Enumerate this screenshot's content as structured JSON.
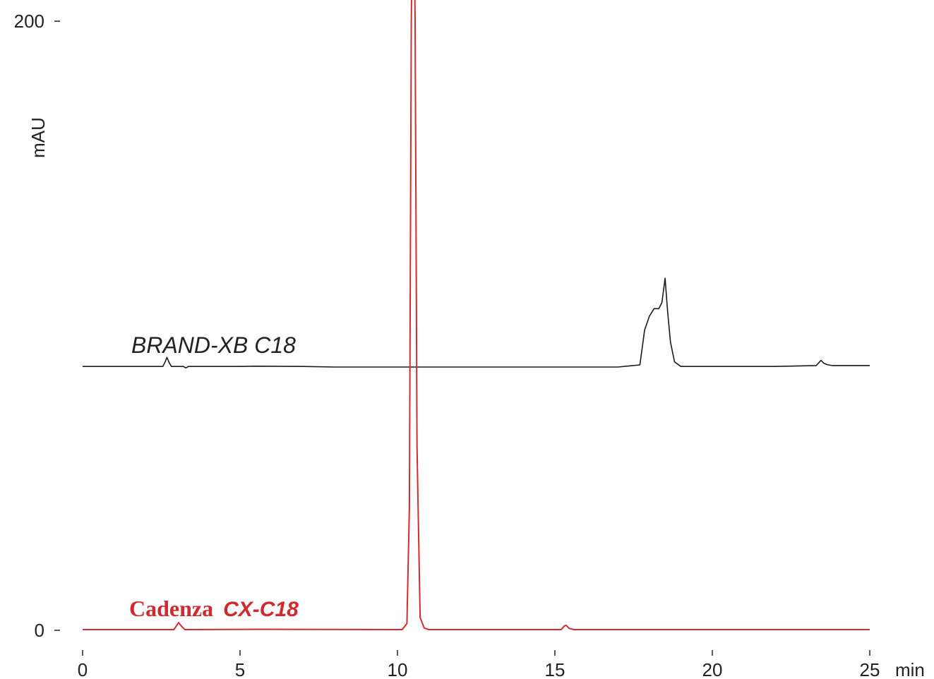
{
  "chart_data": {
    "type": "line",
    "title": "",
    "xlabel": "min",
    "ylabel": "mAU",
    "xlim": [
      0,
      25
    ],
    "ylim": [
      0,
      200
    ],
    "x_ticks": [
      0,
      5,
      10,
      15,
      20,
      25
    ],
    "y_ticks": [
      0,
      200
    ],
    "grid": false,
    "series": [
      {
        "name": "BRAND-XB C18",
        "color": "#1a1a1a",
        "baseline_offset": 86.5,
        "x": [
          0,
          2.55,
          2.62,
          2.68,
          2.75,
          2.82,
          3.2,
          3.28,
          3.36,
          5,
          5.5,
          7,
          8,
          10,
          12,
          15,
          17,
          17.7,
          17.85,
          18.0,
          18.15,
          18.3,
          18.4,
          18.5,
          18.58,
          18.67,
          18.8,
          19.0,
          20,
          22,
          23.3,
          23.45,
          23.55,
          23.65,
          23.8,
          25
        ],
        "y": [
          0,
          0,
          1.5,
          3.0,
          1.2,
          0,
          0,
          -0.5,
          0,
          0,
          0.1,
          0,
          -0.2,
          -0.2,
          -0.2,
          -0.2,
          -0.2,
          0.5,
          12,
          16.5,
          19,
          19,
          21,
          29,
          18,
          8,
          1.5,
          0,
          0,
          0,
          0.3,
          2.0,
          1.0,
          0.6,
          0.3,
          0.3
        ]
      },
      {
        "name": "Cadenza CX-C18",
        "color": "#d62a2e",
        "baseline_offset": 0,
        "x": [
          0,
          2.9,
          2.98,
          3.05,
          3.15,
          3.25,
          5.5,
          10.15,
          10.3,
          10.38,
          10.44,
          10.5,
          10.56,
          10.62,
          10.72,
          10.85,
          11,
          15.2,
          15.3,
          15.36,
          15.45,
          15.6,
          25
        ],
        "y": [
          0,
          0,
          1.2,
          2.3,
          1.0,
          0,
          0.1,
          0,
          2,
          40,
          200,
          260,
          200,
          60,
          4,
          0.5,
          0,
          0,
          1.2,
          1.4,
          0.4,
          0,
          0
        ]
      }
    ],
    "annotations": [
      {
        "series": "BRAND-XB C18",
        "text": "BRAND-XB C18"
      },
      {
        "series": "Cadenza CX-C18",
        "text_main": "Cadenza",
        "text_model": "CX-C18"
      }
    ]
  }
}
